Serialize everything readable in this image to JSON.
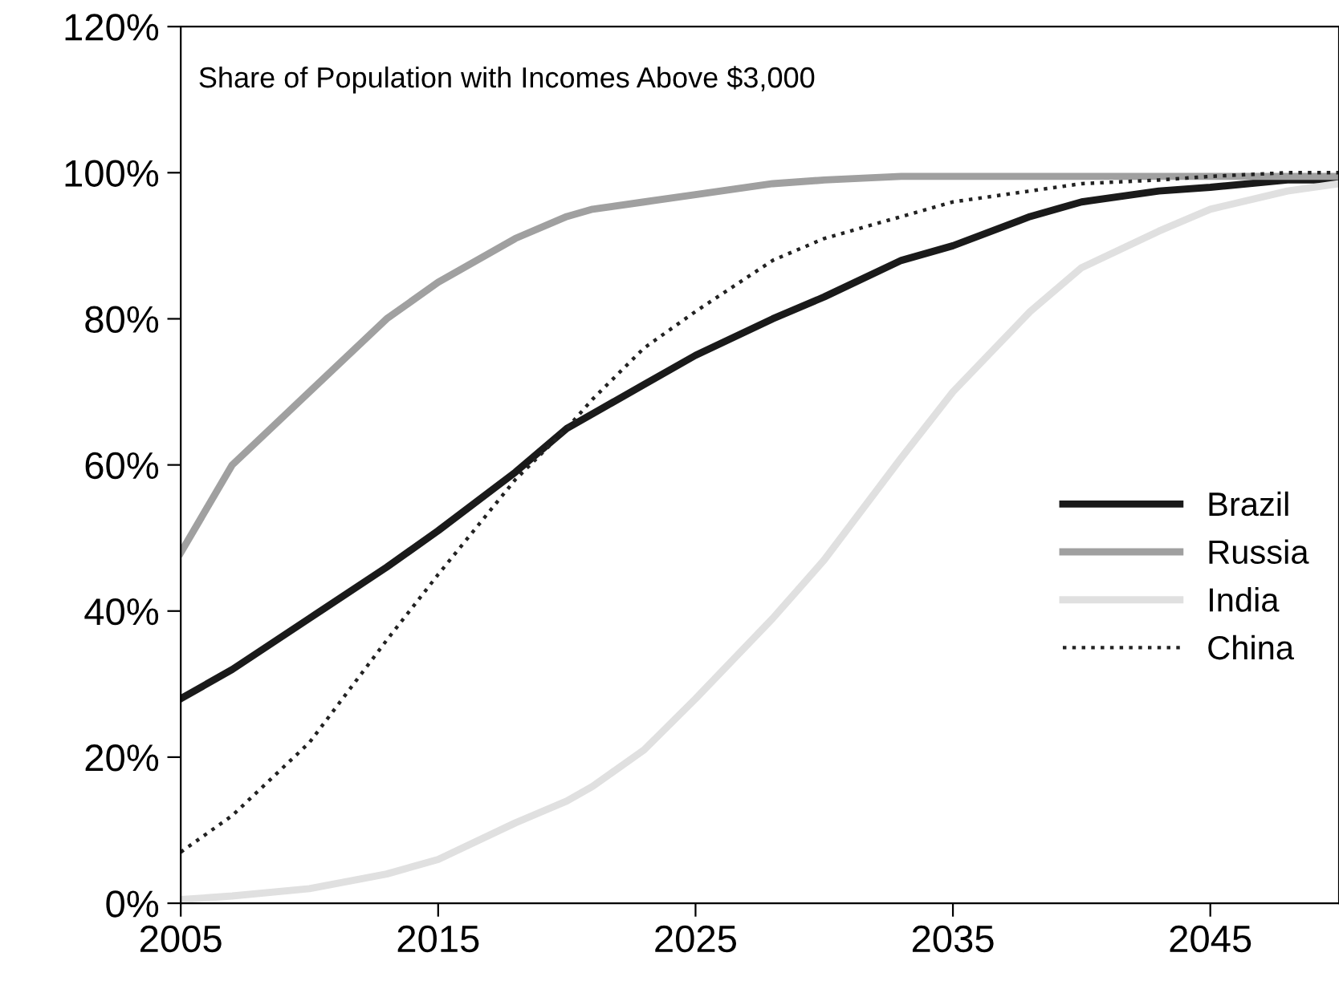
{
  "chart_data": {
    "type": "line",
    "title": "Share of Population with Incomes Above $3,000",
    "x": [
      2005,
      2007,
      2010,
      2013,
      2015,
      2018,
      2020,
      2021,
      2023,
      2025,
      2028,
      2030,
      2033,
      2035,
      2038,
      2040,
      2043,
      2045,
      2048,
      2050
    ],
    "series": [
      {
        "name": "Brazil",
        "color": "#1a1a1a",
        "line_style": "solid",
        "values": [
          28,
          32,
          39,
          46,
          51,
          59,
          65,
          67,
          71,
          75,
          80,
          83,
          88,
          90,
          94,
          96,
          97.5,
          98,
          99,
          99
        ]
      },
      {
        "name": "Russia",
        "color": "#a0a0a0",
        "line_style": "solid",
        "values": [
          48,
          60,
          70,
          80,
          85,
          91,
          94,
          95,
          96,
          97,
          98.5,
          99,
          99.5,
          99.5,
          99.5,
          99.5,
          99.5,
          99.5,
          99.5,
          99.5
        ]
      },
      {
        "name": "India",
        "color": "#e0e0e0",
        "line_style": "solid",
        "values": [
          0.5,
          1,
          2,
          4,
          6,
          11,
          14,
          16,
          21,
          28,
          39,
          47,
          61,
          70,
          81,
          87,
          92,
          95,
          97.5,
          98.5
        ]
      },
      {
        "name": "China",
        "color": "#222222",
        "line_style": "dotted",
        "values": [
          7,
          12,
          22,
          36,
          45,
          58,
          65,
          69,
          76,
          81,
          88,
          91,
          94,
          96,
          97.5,
          98.5,
          99,
          99.5,
          100,
          100
        ]
      }
    ],
    "xlim": [
      2005,
      2050
    ],
    "xticks": [
      2005,
      2015,
      2025,
      2035,
      2045
    ],
    "ylim": [
      0,
      120
    ],
    "yticks": [
      {
        "value": 0,
        "label": "0%"
      },
      {
        "value": 20,
        "label": "20%"
      },
      {
        "value": 40,
        "label": "40%"
      },
      {
        "value": 60,
        "label": "60%"
      },
      {
        "value": 80,
        "label": "80%"
      },
      {
        "value": 100,
        "label": "100%"
      },
      {
        "value": 120,
        "label": "120%"
      }
    ],
    "grid": false,
    "legend": "center right",
    "marker": "none"
  }
}
